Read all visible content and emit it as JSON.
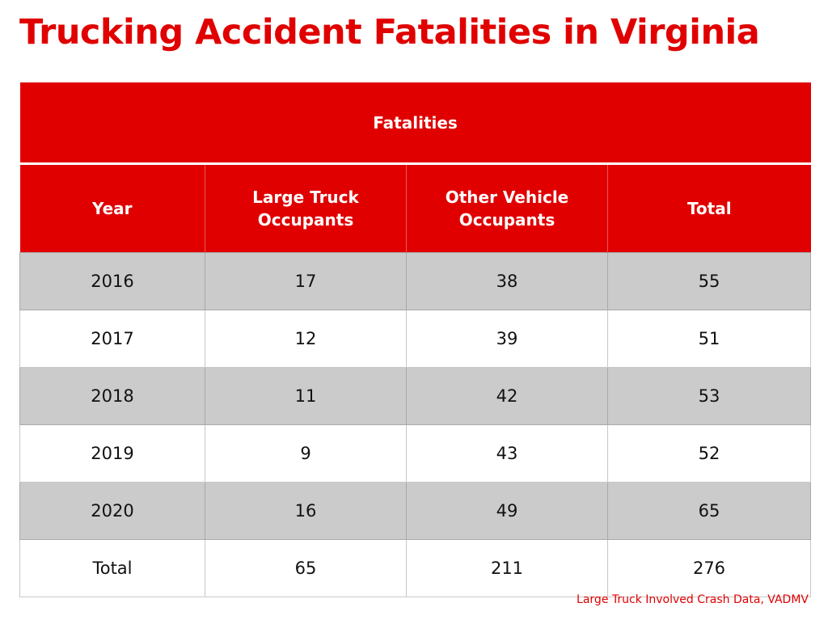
{
  "chart_data": {
    "type": "table",
    "title": "Trucking Accident Fatalities in Virginia",
    "group_header": "Fatalities",
    "columns": [
      "Year",
      "Large Truck Occupants",
      "Other Vehicle Occupants",
      "Total"
    ],
    "rows": [
      [
        "2016",
        "17",
        "38",
        "55"
      ],
      [
        "2017",
        "12",
        "39",
        "51"
      ],
      [
        "2018",
        "11",
        "42",
        "53"
      ],
      [
        "2019",
        "9",
        "43",
        "52"
      ],
      [
        "2020",
        "16",
        "49",
        "65"
      ],
      [
        "Total",
        "65",
        "211",
        "276"
      ]
    ],
    "source": "Large Truck Involved Crash Data, VADMV",
    "colors": {
      "accent": "#e00000",
      "shaded_row": "#cbcbcb",
      "plain_row": "#ffffff"
    }
  }
}
